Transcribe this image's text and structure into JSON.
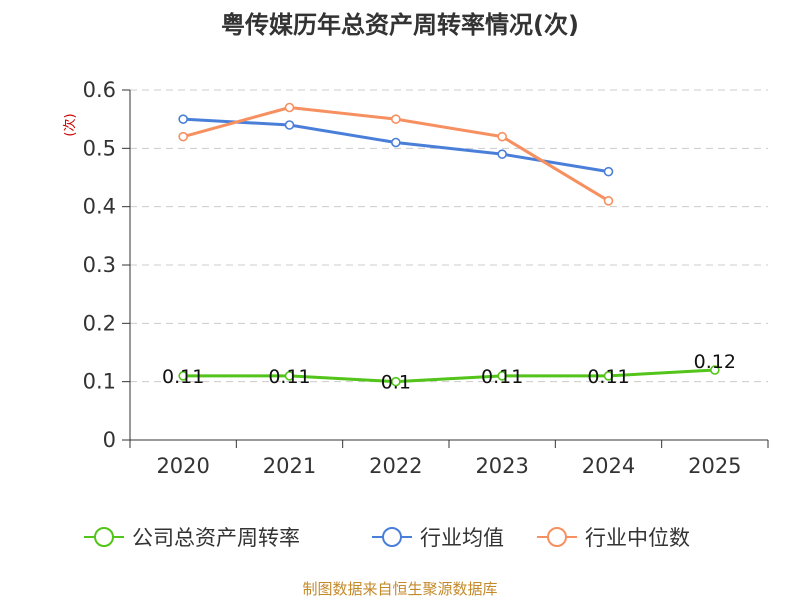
{
  "chart_data": {
    "type": "line",
    "title": "粤传媒历年总资产周转率情况(次)",
    "ylabel": "(次)",
    "xlabel": "",
    "categories": [
      "2020",
      "2021",
      "2022",
      "2023",
      "2024",
      "2025"
    ],
    "ylim": [
      0,
      0.6
    ],
    "yticks": [
      "0",
      "0.1",
      "0.2",
      "0.3",
      "0.4",
      "0.5",
      "0.6"
    ],
    "grid": true,
    "legend_position": "bottom",
    "series": [
      {
        "name": "公司总资产周转率",
        "color": "#52c41a",
        "values": [
          0.11,
          0.11,
          0.1,
          0.11,
          0.11,
          0.12
        ],
        "labels": [
          "0.11",
          "0.11",
          "0.1",
          "0.11",
          "0.11",
          "0.12"
        ]
      },
      {
        "name": "行业均值",
        "color": "#4a7fd9",
        "values": [
          0.55,
          0.54,
          0.51,
          0.49,
          0.46,
          null
        ]
      },
      {
        "name": "行业中位数",
        "color": "#f79060",
        "values": [
          0.52,
          0.57,
          0.55,
          0.52,
          0.41,
          null
        ]
      }
    ]
  },
  "source": "制图数据来自恒生聚源数据库"
}
